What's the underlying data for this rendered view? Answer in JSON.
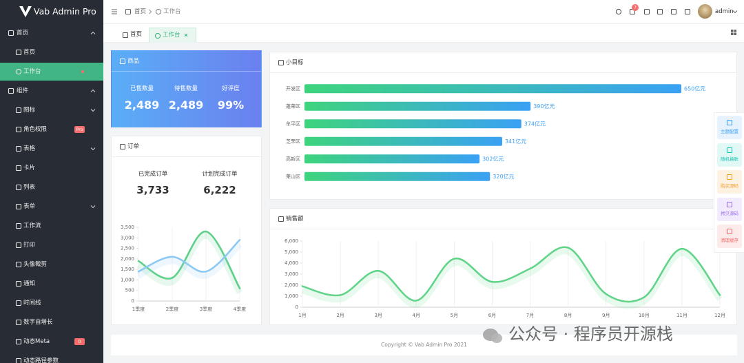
{
  "sidebar": {
    "logo": "Vab Admin Pro",
    "groups": [
      {
        "label": "首页",
        "expanded": true,
        "items": [
          {
            "label": "首页"
          },
          {
            "label": "工作台",
            "active": true
          }
        ]
      },
      {
        "label": "组件",
        "expanded": true,
        "items": [
          {
            "label": "图标",
            "submenu": true
          },
          {
            "label": "角色权限",
            "badge": "Pro"
          },
          {
            "label": "表格",
            "submenu": true
          },
          {
            "label": "卡片"
          },
          {
            "label": "列表"
          },
          {
            "label": "表单",
            "submenu": true
          },
          {
            "label": "工作流"
          },
          {
            "label": "打印"
          },
          {
            "label": "头像裁剪"
          },
          {
            "label": "通知"
          },
          {
            "label": "时间线"
          },
          {
            "label": "数字自增长"
          },
          {
            "label": "动态Meta",
            "badge": "0"
          },
          {
            "label": "动态路径参数"
          }
        ]
      }
    ]
  },
  "header": {
    "breadcrumb": [
      "首页",
      "工作台"
    ],
    "notifications": "7",
    "user": "admin"
  },
  "tabs": [
    {
      "label": "首页"
    },
    {
      "label": "工作台",
      "active": true
    }
  ],
  "goods": {
    "title": "商品",
    "stats": [
      {
        "label": "已售数量",
        "value": "2,489"
      },
      {
        "label": "待售数量",
        "value": "2,489"
      },
      {
        "label": "好评度",
        "value": "99%"
      }
    ]
  },
  "orders": {
    "title": "订单",
    "stats": [
      {
        "label": "已完成订单",
        "value": "3,733"
      },
      {
        "label": "计划完成订单",
        "value": "6,222"
      }
    ],
    "chart": {
      "type": "line",
      "smooth": true,
      "categories": [
        "1季度",
        "2季度",
        "3季度",
        "4季度"
      ],
      "ylim": [
        0,
        3500
      ],
      "yticks": [
        0,
        500,
        {
          "value": 1000,
          "label": "1,000"
        },
        {
          "value": 1500,
          "label": "1,500"
        },
        {
          "value": 2000,
          "label": "2,000"
        },
        {
          "value": 2500,
          "label": "2,500"
        },
        {
          "value": 3000,
          "label": "3,000"
        },
        {
          "value": 3500,
          "label": "3,500"
        }
      ],
      "series": [
        {
          "color": "#5fd08a",
          "values": [
            1900,
            1100,
            3300,
            600
          ]
        },
        {
          "color": "#8ec9f4",
          "values": [
            1400,
            2100,
            1400,
            2900
          ]
        }
      ]
    }
  },
  "goals": {
    "title": "小目标",
    "chart": {
      "type": "bar",
      "orientation": "horizontal",
      "categories": [
        "开发区",
        "蓬莱区",
        "牟平区",
        "芝罘区",
        "高新区",
        "莱山区"
      ],
      "values": [
        650,
        390,
        374,
        341,
        302,
        320
      ],
      "value_labels": [
        "650亿元",
        "390亿元",
        "374亿元",
        "341亿元",
        "302亿元",
        "320亿元"
      ],
      "gradient": [
        "#3ed47d",
        "#3aa1f4"
      ],
      "label_color": "#3a9ff5"
    }
  },
  "sales": {
    "title": "销售额",
    "chart": {
      "type": "line",
      "smooth": true,
      "categories": [
        "1月",
        "2月",
        "3月",
        "4月",
        "5月",
        "6月",
        "7月",
        "8月",
        "9月",
        "10月",
        "11月",
        "12月"
      ],
      "ylim": [
        0,
        6000
      ],
      "yticks": [
        0,
        {
          "value": 1000,
          "label": "1,000"
        },
        {
          "value": 2000,
          "label": "2,000"
        },
        {
          "value": 3000,
          "label": "3,000"
        },
        {
          "value": 4000,
          "label": "4,000"
        },
        {
          "value": 5000,
          "label": "5,000"
        },
        {
          "value": 6000,
          "label": "6,000"
        }
      ],
      "series": [
        {
          "color": "#62d48a",
          "values": [
            1900,
            1100,
            3300,
            600,
            4400,
            2300,
            3500,
            5400,
            1200,
            900,
            5300,
            1100
          ]
        }
      ]
    }
  },
  "float_panel": [
    {
      "label": "主题配置",
      "color": "#3a9ff5",
      "bg": "#e6f2fe"
    },
    {
      "label": "随机换肤",
      "color": "#1cc6b8",
      "bg": "#e2f8f5"
    },
    {
      "label": "购买源码",
      "color": "#f5a030",
      "bg": "#fdf2e2"
    },
    {
      "label": "拷贝源码",
      "color": "#9b6df0",
      "bg": "#f2ebfd"
    },
    {
      "label": "清理缓存",
      "color": "#f56c6c",
      "bg": "#fdebeb"
    }
  ],
  "footer": "Copyright © Vab Admin Pro 2021",
  "watermark": "公众号 · 程序员开源栈"
}
